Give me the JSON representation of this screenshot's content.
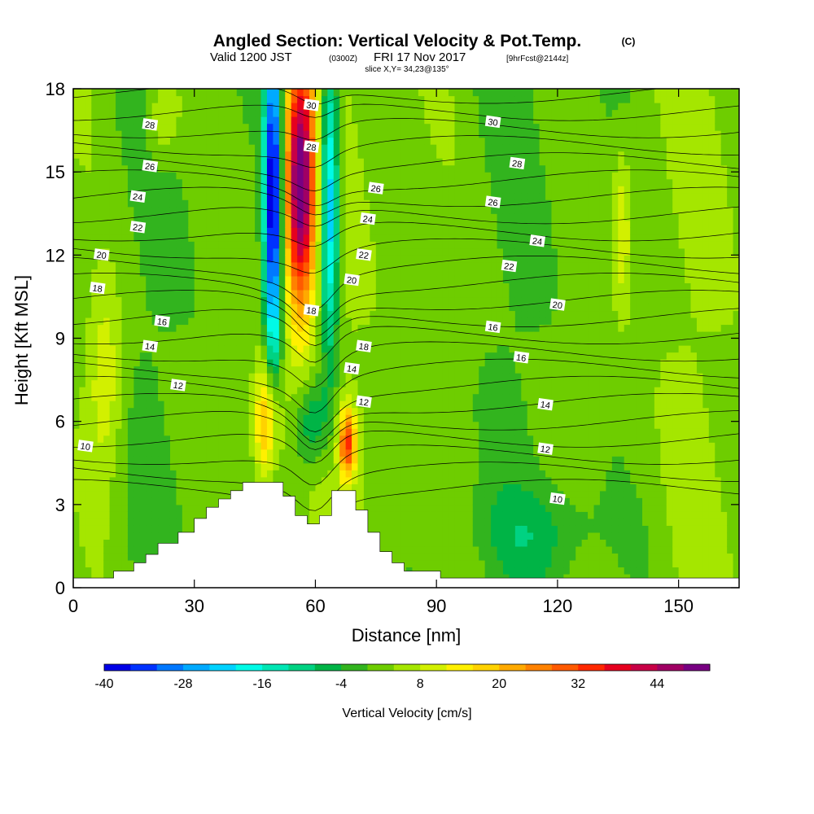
{
  "chart_data": {
    "type": "heatmap",
    "title": {
      "main": "Angled Section: Vertical Velocity & Pot.Temp.",
      "unit": "(C)",
      "valid_prefix": "Valid 1200 JST",
      "valid_zulu": "(0300Z)",
      "valid_date": "FRI 17 Nov 2017",
      "forecast": "[9hrFcst@2144z]",
      "slice": "slice X,Y= 34,23@135°"
    },
    "xlabel": "Distance [nm]",
    "ylabel": "Height [Kft MSL]",
    "xlim": [
      0,
      165
    ],
    "ylim": [
      0,
      18
    ],
    "xticks": [
      0,
      30,
      60,
      90,
      120,
      150
    ],
    "yticks": [
      0,
      3,
      6,
      9,
      12,
      15,
      18
    ],
    "colorbar": {
      "label": "Vertical Velocity [cm/s]",
      "ticks": [
        -40,
        -28,
        -16,
        -4,
        8,
        20,
        32,
        44
      ],
      "range": [
        -40,
        50
      ],
      "step": 4,
      "colors": [
        "#0000e6",
        "#0032ff",
        "#0078ff",
        "#00aaff",
        "#00d2ff",
        "#00fae6",
        "#00e6b4",
        "#00d282",
        "#00b446",
        "#32b41e",
        "#6ecd00",
        "#a5e600",
        "#d2f000",
        "#fff000",
        "#ffd200",
        "#ffaa00",
        "#ff8200",
        "#ff5a00",
        "#ff2800",
        "#e6001e",
        "#c80046",
        "#a00064",
        "#780082"
      ]
    },
    "terrain": [
      [
        0,
        0.35
      ],
      [
        10,
        0.35
      ],
      [
        10,
        0.6
      ],
      [
        15,
        0.6
      ],
      [
        15,
        0.9
      ],
      [
        18,
        0.9
      ],
      [
        18,
        1.2
      ],
      [
        21,
        1.2
      ],
      [
        21,
        1.6
      ],
      [
        26,
        1.6
      ],
      [
        26,
        2.0
      ],
      [
        30,
        2.0
      ],
      [
        30,
        2.5
      ],
      [
        33,
        2.5
      ],
      [
        33,
        2.9
      ],
      [
        36,
        2.9
      ],
      [
        36,
        3.2
      ],
      [
        39,
        3.2
      ],
      [
        39,
        3.5
      ],
      [
        42,
        3.5
      ],
      [
        42,
        3.8
      ],
      [
        52,
        3.8
      ],
      [
        52,
        3.3
      ],
      [
        55,
        3.3
      ],
      [
        55,
        2.6
      ],
      [
        58,
        2.6
      ],
      [
        58,
        2.3
      ],
      [
        61,
        2.3
      ],
      [
        61,
        2.6
      ],
      [
        64,
        2.6
      ],
      [
        64,
        3.5
      ],
      [
        70,
        3.5
      ],
      [
        70,
        2.8
      ],
      [
        73,
        2.8
      ],
      [
        73,
        2.0
      ],
      [
        76,
        2.0
      ],
      [
        76,
        1.3
      ],
      [
        79,
        1.3
      ],
      [
        79,
        0.9
      ],
      [
        82,
        0.9
      ],
      [
        82,
        0.6
      ],
      [
        91,
        0.6
      ],
      [
        91,
        0.35
      ],
      [
        165,
        0.35
      ]
    ],
    "theta_labels": [
      {
        "text": "30",
        "x": 59,
        "y": 17.4
      },
      {
        "text": "30",
        "x": 104,
        "y": 16.8
      },
      {
        "text": "28",
        "x": 19,
        "y": 16.7
      },
      {
        "text": "28",
        "x": 59,
        "y": 15.9
      },
      {
        "text": "28",
        "x": 110,
        "y": 15.3
      },
      {
        "text": "26",
        "x": 19,
        "y": 15.2
      },
      {
        "text": "26",
        "x": 75,
        "y": 14.4
      },
      {
        "text": "26",
        "x": 104,
        "y": 13.9
      },
      {
        "text": "24",
        "x": 16,
        "y": 14.1
      },
      {
        "text": "24",
        "x": 73,
        "y": 13.3
      },
      {
        "text": "24",
        "x": 115,
        "y": 12.5
      },
      {
        "text": "22",
        "x": 16,
        "y": 13.0
      },
      {
        "text": "22",
        "x": 72,
        "y": 12.0
      },
      {
        "text": "22",
        "x": 108,
        "y": 11.6
      },
      {
        "text": "20",
        "x": 7,
        "y": 12.0
      },
      {
        "text": "20",
        "x": 69,
        "y": 11.1
      },
      {
        "text": "20",
        "x": 120,
        "y": 10.2
      },
      {
        "text": "18",
        "x": 6,
        "y": 10.8
      },
      {
        "text": "18",
        "x": 59,
        "y": 10.0
      },
      {
        "text": "18",
        "x": 72,
        "y": 8.7
      },
      {
        "text": "16",
        "x": 22,
        "y": 9.6
      },
      {
        "text": "16",
        "x": 104,
        "y": 9.4
      },
      {
        "text": "16",
        "x": 111,
        "y": 8.3
      },
      {
        "text": "14",
        "x": 19,
        "y": 8.7
      },
      {
        "text": "14",
        "x": 69,
        "y": 7.9
      },
      {
        "text": "14",
        "x": 117,
        "y": 6.6
      },
      {
        "text": "12",
        "x": 26,
        "y": 7.3
      },
      {
        "text": "12",
        "x": 72,
        "y": 6.7
      },
      {
        "text": "12",
        "x": 117,
        "y": 5.0
      },
      {
        "text": "10",
        "x": 3,
        "y": 5.1
      },
      {
        "text": "10",
        "x": 120,
        "y": 3.2
      }
    ]
  }
}
